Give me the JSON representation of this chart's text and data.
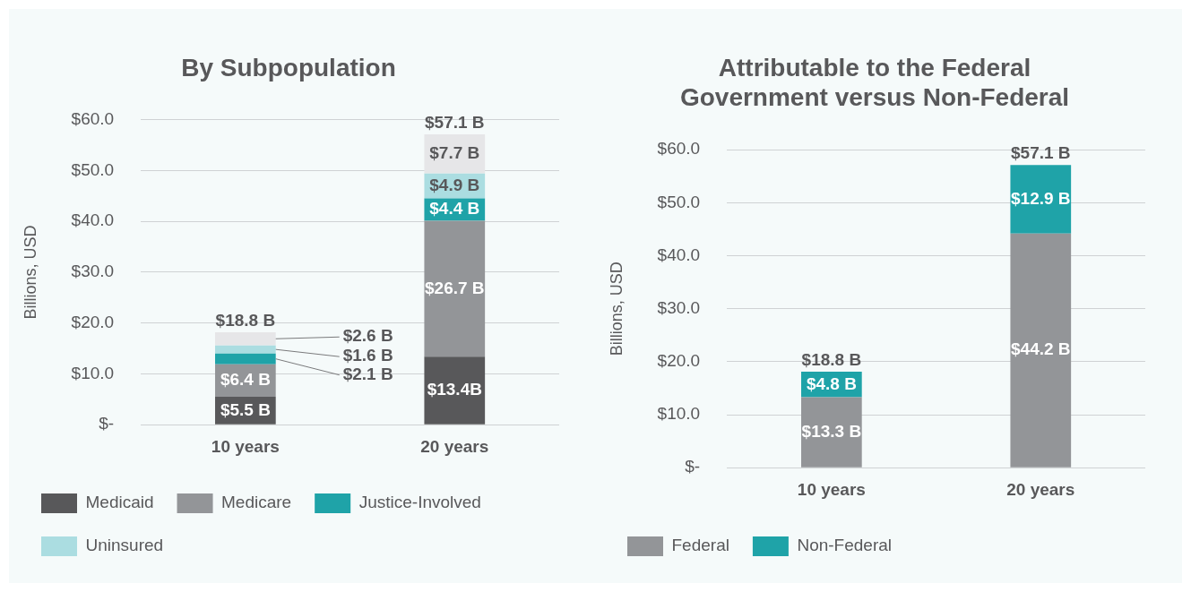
{
  "chart_data": [
    {
      "type": "bar",
      "title": "By Subpopulation",
      "ylabel": "Billions, USD",
      "categories": [
        "10 years",
        "20 years"
      ],
      "stacked": true,
      "data_labels": true,
      "grid": "y",
      "legend": "bottom",
      "ylim": [
        0,
        60
      ],
      "yticks": [
        {
          "value": 0,
          "label": "$-"
        },
        {
          "value": 10,
          "label": "$10.0"
        },
        {
          "value": 20,
          "label": "$20.0"
        },
        {
          "value": 30,
          "label": "$30.0"
        },
        {
          "value": 40,
          "label": "$40.0"
        },
        {
          "value": 50,
          "label": "$50.0"
        },
        {
          "value": 60,
          "label": "$60.0"
        }
      ],
      "series": [
        {
          "name": "Medicaid",
          "color": "#58585a",
          "values": [
            5.5,
            13.4
          ],
          "value_labels": [
            "$5.5 B",
            "$13.4B"
          ]
        },
        {
          "name": "Medicare",
          "color": "#939598",
          "values": [
            6.4,
            26.7
          ],
          "value_labels": [
            "$6.4 B",
            "$26.7 B"
          ]
        },
        {
          "name": "Justice-Involved",
          "color": "#1fa3a8",
          "values": [
            2.1,
            4.4
          ],
          "value_labels": [
            "$2.1 B",
            "$4.4 B"
          ]
        },
        {
          "name": "Uninsured",
          "color": "#abdde1",
          "values": [
            1.6,
            4.9
          ],
          "value_labels": [
            "$1.6 B",
            "$4.9 B"
          ]
        },
        {
          "color": "#e6e6e8",
          "values": [
            2.6,
            7.7
          ],
          "value_labels": [
            "$2.6 B",
            "$7.7 B"
          ]
        }
      ],
      "annotations": [
        {
          "text": "$18.8 B",
          "x": "10 years",
          "y": 18.2
        },
        {
          "text": "$57.1 B",
          "x": "20 years",
          "y": 57.1
        }
      ]
    },
    {
      "type": "bar",
      "title": "Attributable to the Federal Government versus Non-Federal",
      "ylabel": "Billions, USD",
      "categories": [
        "10 years",
        "20 years"
      ],
      "stacked": true,
      "data_labels": true,
      "grid": "y",
      "legend": "bottom",
      "ylim": [
        0,
        60
      ],
      "yticks": [
        {
          "value": 0,
          "label": "$-"
        },
        {
          "value": 10,
          "label": "$10.0"
        },
        {
          "value": 20,
          "label": "$20.0"
        },
        {
          "value": 30,
          "label": "$30.0"
        },
        {
          "value": 40,
          "label": "$40.0"
        },
        {
          "value": 50,
          "label": "$50.0"
        },
        {
          "value": 60,
          "label": "$60.0"
        }
      ],
      "series": [
        {
          "name": "Federal",
          "color": "#939598",
          "values": [
            13.3,
            44.2
          ],
          "value_labels": [
            "$13.3 B",
            "$44.2 B"
          ]
        },
        {
          "name": "Non-Federal",
          "color": "#1fa3a8",
          "values": [
            4.8,
            12.9
          ],
          "value_labels": [
            "$4.8 B",
            "$12.9 B"
          ]
        }
      ],
      "annotations": [
        {
          "text": "$18.8 B",
          "x": "10 years",
          "y": 18.1
        },
        {
          "text": "$57.1 B",
          "x": "20 years",
          "y": 57.1
        }
      ]
    }
  ]
}
